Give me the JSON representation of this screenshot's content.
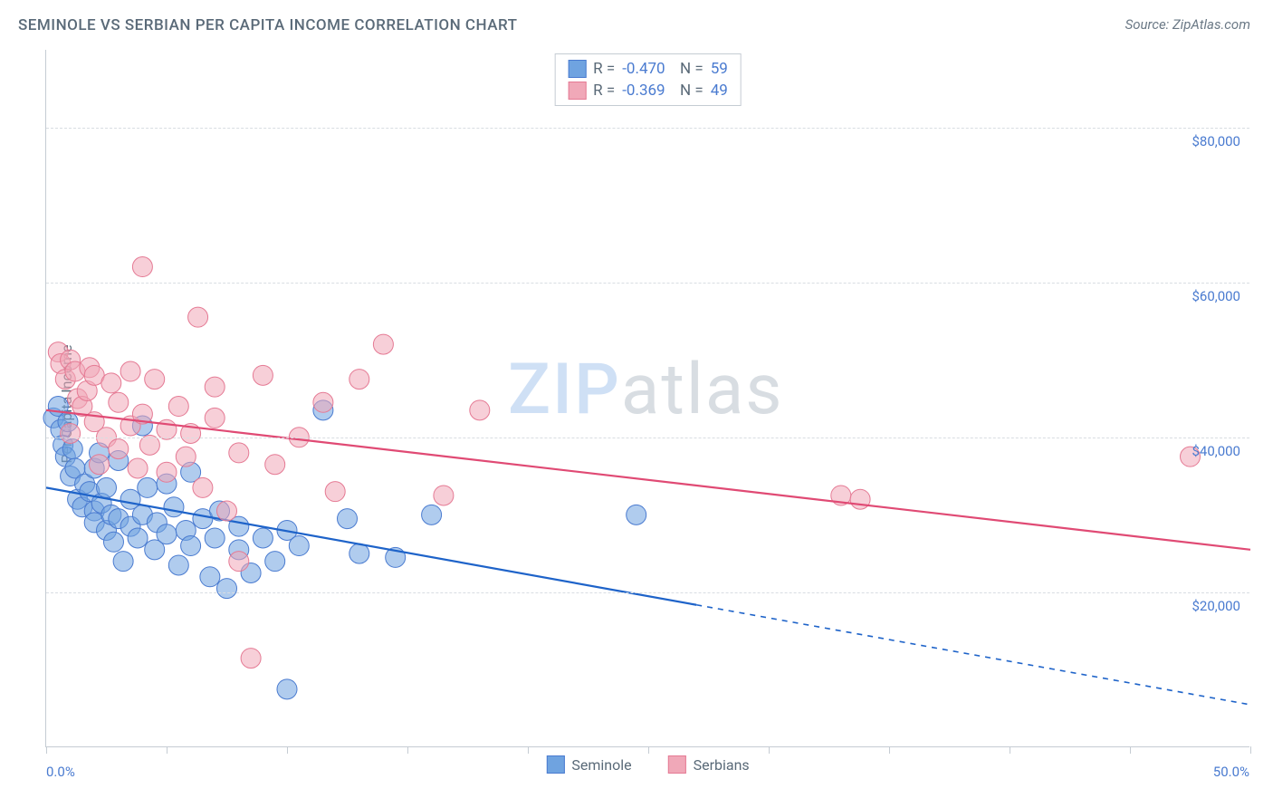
{
  "title": "SEMINOLE VS SERBIAN PER CAPITA INCOME CORRELATION CHART",
  "source_label": "Source: ZipAtlas.com",
  "ylabel": "Per Capita Income",
  "watermark": {
    "part1": "ZIP",
    "part2": "atlas"
  },
  "chart": {
    "type": "scatter",
    "background_color": "#ffffff",
    "grid_color": "#d8dde2",
    "axis_color": "#c5ccd3",
    "text_color": "#5a6a78",
    "value_color": "#4a7bd0",
    "xlim": [
      0,
      50
    ],
    "ylim": [
      0,
      90000
    ],
    "y_ticks": [
      20000,
      40000,
      60000,
      80000
    ],
    "y_tick_labels": [
      "$20,000",
      "$40,000",
      "$60,000",
      "$80,000"
    ],
    "x_ticks": [
      0,
      5,
      10,
      15,
      20,
      25,
      30,
      35,
      40,
      45,
      50
    ],
    "x_tick_labels": {
      "0": "0.0%",
      "50": "50.0%"
    },
    "point_radius": 11,
    "point_opacity": 0.55,
    "line_width": 2.2,
    "series": [
      {
        "name": "Seminole",
        "color": "#6fa3e0",
        "stroke": "#4a7bd0",
        "line_color": "#1e63c9",
        "R": "-0.470",
        "N": "59",
        "trend": {
          "x1": 0,
          "y1": 33500,
          "x2": 50,
          "y2": 5500,
          "solid_until_x": 27
        },
        "points": [
          [
            0.3,
            42500
          ],
          [
            0.5,
            44000
          ],
          [
            0.6,
            41000
          ],
          [
            0.7,
            39000
          ],
          [
            0.8,
            37500
          ],
          [
            0.9,
            42000
          ],
          [
            1.0,
            35000
          ],
          [
            1.1,
            38500
          ],
          [
            1.2,
            36000
          ],
          [
            1.3,
            32000
          ],
          [
            1.5,
            31000
          ],
          [
            1.6,
            34000
          ],
          [
            1.8,
            33000
          ],
          [
            2.0,
            30500
          ],
          [
            2.0,
            36000
          ],
          [
            2.0,
            29000
          ],
          [
            2.2,
            38000
          ],
          [
            2.3,
            31500
          ],
          [
            2.5,
            28000
          ],
          [
            2.5,
            33500
          ],
          [
            2.7,
            30000
          ],
          [
            2.8,
            26500
          ],
          [
            3.0,
            29500
          ],
          [
            3.0,
            37000
          ],
          [
            3.2,
            24000
          ],
          [
            3.5,
            28500
          ],
          [
            3.5,
            32000
          ],
          [
            3.8,
            27000
          ],
          [
            4.0,
            30000
          ],
          [
            4.0,
            41500
          ],
          [
            4.2,
            33500
          ],
          [
            4.5,
            25500
          ],
          [
            4.6,
            29000
          ],
          [
            5.0,
            27500
          ],
          [
            5.0,
            34000
          ],
          [
            5.3,
            31000
          ],
          [
            5.5,
            23500
          ],
          [
            5.8,
            28000
          ],
          [
            6.0,
            26000
          ],
          [
            6.0,
            35500
          ],
          [
            6.5,
            29500
          ],
          [
            6.8,
            22000
          ],
          [
            7.0,
            27000
          ],
          [
            7.2,
            30500
          ],
          [
            7.5,
            20500
          ],
          [
            8.0,
            25500
          ],
          [
            8.0,
            28500
          ],
          [
            8.5,
            22500
          ],
          [
            9.0,
            27000
          ],
          [
            9.5,
            24000
          ],
          [
            10.0,
            28000
          ],
          [
            10.0,
            7500
          ],
          [
            10.5,
            26000
          ],
          [
            11.5,
            43500
          ],
          [
            12.5,
            29500
          ],
          [
            13.0,
            25000
          ],
          [
            14.5,
            24500
          ],
          [
            16.0,
            30000
          ],
          [
            24.5,
            30000
          ]
        ]
      },
      {
        "name": "Serbians",
        "color": "#f0a8b8",
        "stroke": "#e57a94",
        "line_color": "#e04a74",
        "R": "-0.369",
        "N": "49",
        "trend": {
          "x1": 0,
          "y1": 43500,
          "x2": 50,
          "y2": 25500,
          "solid_until_x": 50
        },
        "points": [
          [
            0.5,
            51000
          ],
          [
            0.6,
            49500
          ],
          [
            0.8,
            47500
          ],
          [
            1.0,
            50000
          ],
          [
            1.0,
            40500
          ],
          [
            1.2,
            48500
          ],
          [
            1.3,
            45000
          ],
          [
            1.5,
            44000
          ],
          [
            1.7,
            46000
          ],
          [
            1.8,
            49000
          ],
          [
            2.0,
            42000
          ],
          [
            2.0,
            48000
          ],
          [
            2.2,
            36500
          ],
          [
            2.5,
            40000
          ],
          [
            2.7,
            47000
          ],
          [
            3.0,
            38500
          ],
          [
            3.0,
            44500
          ],
          [
            3.5,
            41500
          ],
          [
            3.5,
            48500
          ],
          [
            3.8,
            36000
          ],
          [
            4.0,
            62000
          ],
          [
            4.0,
            43000
          ],
          [
            4.3,
            39000
          ],
          [
            4.5,
            47500
          ],
          [
            5.0,
            41000
          ],
          [
            5.0,
            35500
          ],
          [
            5.5,
            44000
          ],
          [
            5.8,
            37500
          ],
          [
            6.0,
            40500
          ],
          [
            6.3,
            55500
          ],
          [
            6.5,
            33500
          ],
          [
            7.0,
            42500
          ],
          [
            7.0,
            46500
          ],
          [
            7.5,
            30500
          ],
          [
            8.0,
            38000
          ],
          [
            8.0,
            24000
          ],
          [
            8.5,
            11500
          ],
          [
            9.0,
            48000
          ],
          [
            9.5,
            36500
          ],
          [
            10.5,
            40000
          ],
          [
            11.5,
            44500
          ],
          [
            12.0,
            33000
          ],
          [
            13.0,
            47500
          ],
          [
            14.0,
            52000
          ],
          [
            16.5,
            32500
          ],
          [
            18.0,
            43500
          ],
          [
            33.0,
            32500
          ],
          [
            33.8,
            32000
          ],
          [
            47.5,
            37500
          ]
        ]
      }
    ]
  }
}
